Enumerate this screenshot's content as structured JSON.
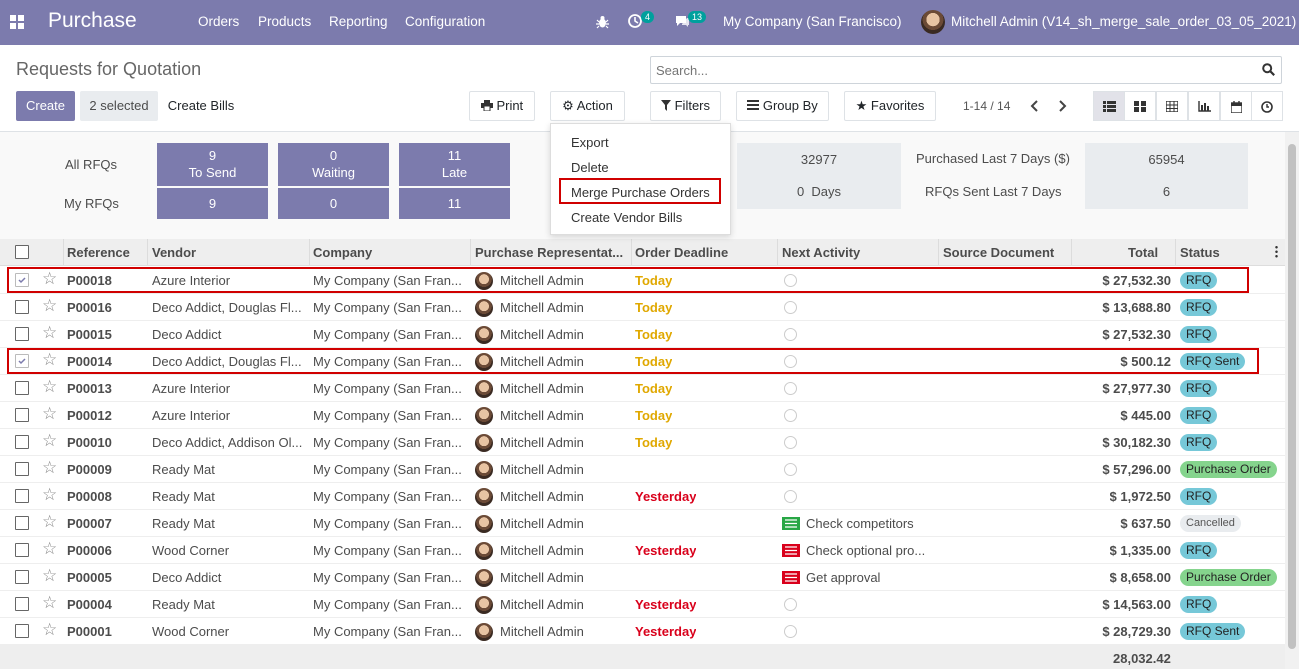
{
  "app": {
    "title": "Purchase",
    "menu": [
      "Orders",
      "Products",
      "Reporting",
      "Configuration"
    ]
  },
  "systray": {
    "activities_count": "4",
    "messages_count": "13",
    "company": "My Company (San Francisco)",
    "user": "Mitchell Admin (V14_sh_merge_sale_order_03_05_2021)"
  },
  "page": {
    "title": "Requests for Quotation"
  },
  "search": {
    "placeholder": "Search..."
  },
  "toolbar": {
    "create": "Create",
    "selected": "2 selected",
    "create_bills": "Create Bills",
    "print": "Print",
    "action": "Action",
    "filters": "Filters",
    "group_by": "Group By",
    "favorites": "Favorites",
    "pager": "1-14 / 14"
  },
  "action_menu": [
    "Export",
    "Delete",
    "Merge Purchase Orders",
    "Create Vendor Bills"
  ],
  "dashboard": {
    "all_rfqs_label": "All RFQs",
    "my_rfqs_label": "My RFQs",
    "tiles": [
      {
        "value": "9",
        "label": "To Send",
        "mine": "9"
      },
      {
        "value": "0",
        "label": "Waiting",
        "mine": "0"
      },
      {
        "value": "11",
        "label": "Late",
        "mine": "11"
      }
    ],
    "stats": [
      {
        "value": "32977",
        "label": "Purchased Last 7 Days ($)",
        "value2": "65954"
      },
      {
        "value": "0  Days",
        "label": "RFQs Sent Last 7 Days",
        "value2": "6"
      }
    ]
  },
  "columns": [
    "Reference",
    "Vendor",
    "Company",
    "Purchase Representat...",
    "Order Deadline",
    "Next Activity",
    "Source Document",
    "Total",
    "Status"
  ],
  "rows": [
    {
      "ref": "P00018",
      "vendor": "Azure Interior",
      "company": "My Company (San Fran...",
      "rep": "Mitchell Admin",
      "deadline": "Today",
      "activity": "",
      "total": "$ 27,532.30",
      "status": "RFQ",
      "checked": true
    },
    {
      "ref": "P00016",
      "vendor": "Deco Addict, Douglas Fl...",
      "company": "My Company (San Fran...",
      "rep": "Mitchell Admin",
      "deadline": "Today",
      "activity": "",
      "total": "$ 13,688.80",
      "status": "RFQ",
      "checked": false
    },
    {
      "ref": "P00015",
      "vendor": "Deco Addict",
      "company": "My Company (San Fran...",
      "rep": "Mitchell Admin",
      "deadline": "Today",
      "activity": "",
      "total": "$ 27,532.30",
      "status": "RFQ",
      "checked": false
    },
    {
      "ref": "P00014",
      "vendor": "Deco Addict, Douglas Fl...",
      "company": "My Company (San Fran...",
      "rep": "Mitchell Admin",
      "deadline": "Today",
      "activity": "",
      "total": "$ 500.12",
      "status": "RFQ Sent",
      "checked": true
    },
    {
      "ref": "P00013",
      "vendor": "Azure Interior",
      "company": "My Company (San Fran...",
      "rep": "Mitchell Admin",
      "deadline": "Today",
      "activity": "",
      "total": "$ 27,977.30",
      "status": "RFQ",
      "checked": false
    },
    {
      "ref": "P00012",
      "vendor": "Azure Interior",
      "company": "My Company (San Fran...",
      "rep": "Mitchell Admin",
      "deadline": "Today",
      "activity": "",
      "total": "$ 445.00",
      "status": "RFQ",
      "checked": false
    },
    {
      "ref": "P00010",
      "vendor": "Deco Addict, Addison Ol...",
      "company": "My Company (San Fran...",
      "rep": "Mitchell Admin",
      "deadline": "Today",
      "activity": "",
      "total": "$ 30,182.30",
      "status": "RFQ",
      "checked": false
    },
    {
      "ref": "P00009",
      "vendor": "Ready Mat",
      "company": "My Company (San Fran...",
      "rep": "Mitchell Admin",
      "deadline": "",
      "activity": "",
      "total": "$ 57,296.00",
      "status": "Purchase Order",
      "checked": false
    },
    {
      "ref": "P00008",
      "vendor": "Ready Mat",
      "company": "My Company (San Fran...",
      "rep": "Mitchell Admin",
      "deadline": "Yesterday",
      "activity": "",
      "total": "$ 1,972.50",
      "status": "RFQ",
      "checked": false
    },
    {
      "ref": "P00007",
      "vendor": "Ready Mat",
      "company": "My Company (San Fran...",
      "rep": "Mitchell Admin",
      "deadline": "",
      "activity": "Check competitors",
      "total": "$ 637.50",
      "status": "Cancelled",
      "checked": false
    },
    {
      "ref": "P00006",
      "vendor": "Wood Corner",
      "company": "My Company (San Fran...",
      "rep": "Mitchell Admin",
      "deadline": "Yesterday",
      "activity": "Check optional pro...",
      "total": "$ 1,335.00",
      "status": "RFQ",
      "checked": false
    },
    {
      "ref": "P00005",
      "vendor": "Deco Addict",
      "company": "My Company (San Fran...",
      "rep": "Mitchell Admin",
      "deadline": "",
      "activity": "Get approval",
      "total": "$ 8,658.00",
      "status": "Purchase Order",
      "checked": false
    },
    {
      "ref": "P00004",
      "vendor": "Ready Mat",
      "company": "My Company (San Fran...",
      "rep": "Mitchell Admin",
      "deadline": "Yesterday",
      "activity": "",
      "total": "$ 14,563.00",
      "status": "RFQ",
      "checked": false
    },
    {
      "ref": "P00001",
      "vendor": "Wood Corner",
      "company": "My Company (San Fran...",
      "rep": "Mitchell Admin",
      "deadline": "Yesterday",
      "activity": "",
      "total": "$ 28,729.30",
      "status": "RFQ Sent",
      "checked": false
    }
  ],
  "footer": {
    "grand_total": "28,032.42"
  },
  "colors": {
    "brand": "#7c7bad",
    "today": "#e0a800",
    "yesterday": "#d9001b",
    "highlight": "#d00000",
    "rfq": "#76c8d8",
    "purchase_order": "#85d48d"
  }
}
